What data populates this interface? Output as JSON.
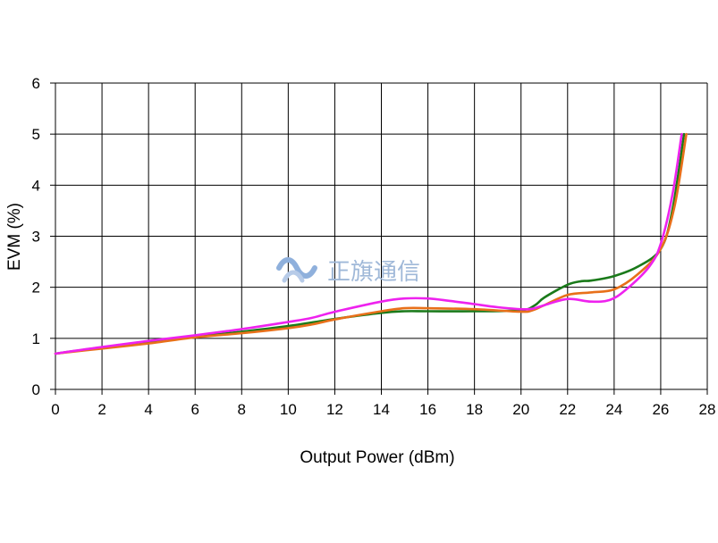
{
  "chart_data": {
    "type": "line",
    "title": "",
    "xlabel": "Output Power (dBm)",
    "ylabel": "EVM (%)",
    "xlim": [
      0,
      28
    ],
    "ylim": [
      0,
      6
    ],
    "xticks": [
      0,
      2,
      4,
      6,
      8,
      10,
      12,
      14,
      16,
      18,
      20,
      22,
      24,
      26,
      28
    ],
    "yticks": [
      0,
      1,
      2,
      3,
      4,
      5,
      6
    ],
    "grid": true,
    "legend": "none",
    "series": [
      {
        "color": "#1a7a1a",
        "points": [
          [
            0,
            0.7
          ],
          [
            2,
            0.82
          ],
          [
            4,
            0.92
          ],
          [
            6,
            1.03
          ],
          [
            8,
            1.13
          ],
          [
            10,
            1.24
          ],
          [
            12,
            1.38
          ],
          [
            14,
            1.5
          ],
          [
            15,
            1.53
          ],
          [
            16,
            1.53
          ],
          [
            18,
            1.53
          ],
          [
            20,
            1.55
          ],
          [
            20.6,
            1.65
          ],
          [
            21,
            1.8
          ],
          [
            22,
            2.05
          ],
          [
            22.6,
            2.12
          ],
          [
            23,
            2.13
          ],
          [
            24,
            2.22
          ],
          [
            25,
            2.4
          ],
          [
            26,
            2.75
          ],
          [
            26.5,
            3.5
          ],
          [
            27,
            5.0
          ]
        ]
      },
      {
        "color": "#e8701a",
        "points": [
          [
            0,
            0.7
          ],
          [
            2,
            0.8
          ],
          [
            4,
            0.9
          ],
          [
            6,
            1.02
          ],
          [
            8,
            1.1
          ],
          [
            10,
            1.2
          ],
          [
            11,
            1.27
          ],
          [
            12,
            1.37
          ],
          [
            14,
            1.53
          ],
          [
            15,
            1.59
          ],
          [
            16,
            1.59
          ],
          [
            18,
            1.57
          ],
          [
            20,
            1.52
          ],
          [
            20.5,
            1.55
          ],
          [
            21,
            1.65
          ],
          [
            22,
            1.85
          ],
          [
            23,
            1.9
          ],
          [
            24,
            1.96
          ],
          [
            25,
            2.25
          ],
          [
            26,
            2.75
          ],
          [
            26.6,
            3.6
          ],
          [
            27.1,
            5.0
          ]
        ]
      },
      {
        "color": "#ee22ee",
        "points": [
          [
            0,
            0.7
          ],
          [
            2,
            0.83
          ],
          [
            4,
            0.95
          ],
          [
            6,
            1.06
          ],
          [
            8,
            1.18
          ],
          [
            10,
            1.32
          ],
          [
            11,
            1.4
          ],
          [
            12,
            1.52
          ],
          [
            14,
            1.72
          ],
          [
            15,
            1.78
          ],
          [
            16,
            1.78
          ],
          [
            17,
            1.73
          ],
          [
            18,
            1.67
          ],
          [
            19,
            1.61
          ],
          [
            20,
            1.57
          ],
          [
            20.5,
            1.58
          ],
          [
            21,
            1.65
          ],
          [
            22,
            1.77
          ],
          [
            23,
            1.72
          ],
          [
            23.8,
            1.75
          ],
          [
            24.5,
            1.95
          ],
          [
            25.5,
            2.4
          ],
          [
            26,
            2.85
          ],
          [
            26.5,
            3.8
          ],
          [
            26.9,
            5.0
          ]
        ]
      }
    ]
  },
  "watermark": {
    "text": "正旗通信",
    "icon": "wave-logo-icon"
  }
}
